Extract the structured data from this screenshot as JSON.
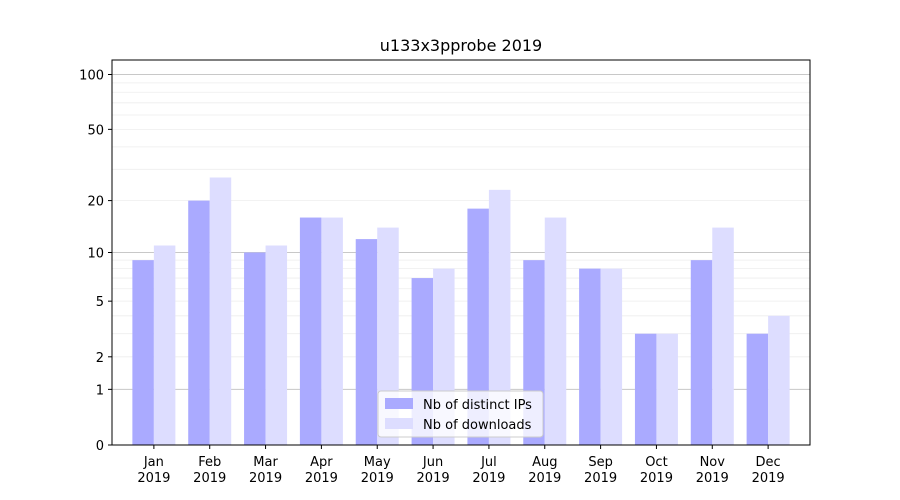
{
  "chart_data": {
    "type": "bar",
    "title": "u133x3pprobe 2019",
    "categories": [
      [
        "Jan",
        "2019"
      ],
      [
        "Feb",
        "2019"
      ],
      [
        "Mar",
        "2019"
      ],
      [
        "Apr",
        "2019"
      ],
      [
        "May",
        "2019"
      ],
      [
        "Jun",
        "2019"
      ],
      [
        "Jul",
        "2019"
      ],
      [
        "Aug",
        "2019"
      ],
      [
        "Sep",
        "2019"
      ],
      [
        "Oct",
        "2019"
      ],
      [
        "Nov",
        "2019"
      ],
      [
        "Dec",
        "2019"
      ]
    ],
    "series": [
      {
        "name": "Nb of distinct IPs",
        "color": "#aaaaff",
        "values": [
          9,
          20,
          10,
          16,
          12,
          7,
          18,
          9,
          8,
          3,
          9,
          3
        ]
      },
      {
        "name": "Nb of downloads",
        "color": "#ddddff",
        "values": [
          11,
          27,
          11,
          16,
          14,
          8,
          23,
          16,
          8,
          3,
          14,
          4
        ]
      }
    ],
    "yscale": "log1p",
    "ylim": [
      0,
      120
    ],
    "yticks": [
      0,
      1,
      2,
      5,
      10,
      20,
      50,
      100
    ],
    "ytick_labels": [
      "0",
      "1",
      "2",
      "5",
      "10",
      "20",
      "50",
      "100"
    ],
    "grid": true,
    "legend_position": "bottom-center"
  }
}
